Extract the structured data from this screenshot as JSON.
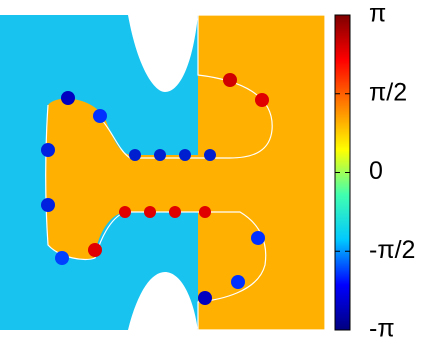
{
  "chart_data": {
    "type": "heatmap",
    "colormap": [
      "#00007f",
      "#0000ff",
      "#00c8ff",
      "#40ffb0",
      "#ffff00",
      "#ff8000",
      "#ff0000",
      "#7f0000"
    ],
    "zlim": [
      -3.14159,
      3.14159
    ],
    "zticks": [
      {
        "value": 3.14159,
        "label": "π"
      },
      {
        "value": 1.5708,
        "label": "π/2"
      },
      {
        "value": 0,
        "label": "0"
      },
      {
        "value": -1.5708,
        "label": "-π/2"
      },
      {
        "value": -3.14159,
        "label": "-π"
      }
    ]
  }
}
